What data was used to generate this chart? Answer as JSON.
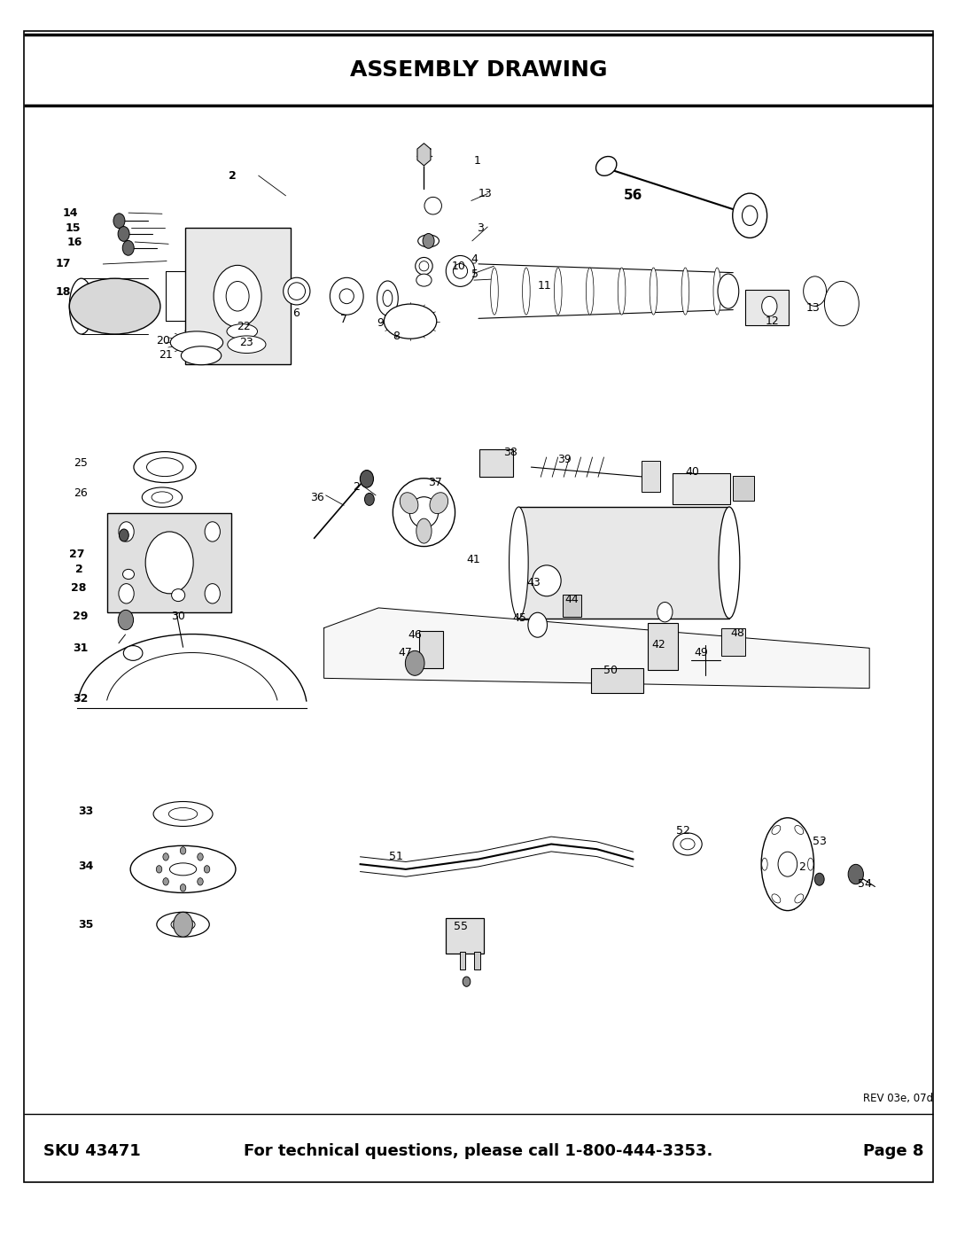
{
  "title": "ASSEMBLY DRAWING",
  "sku": "SKU 43471",
  "footer_center": "For technical questions, please call 1-800-444-3353.",
  "footer_right": "Page 8",
  "footer_rev": "REV 03e, 07d",
  "bg_color": "#ffffff",
  "line_color": "#000000",
  "title_fontsize": 18,
  "footer_fontsize": 13,
  "fig_width": 10.8,
  "fig_height": 13.97
}
